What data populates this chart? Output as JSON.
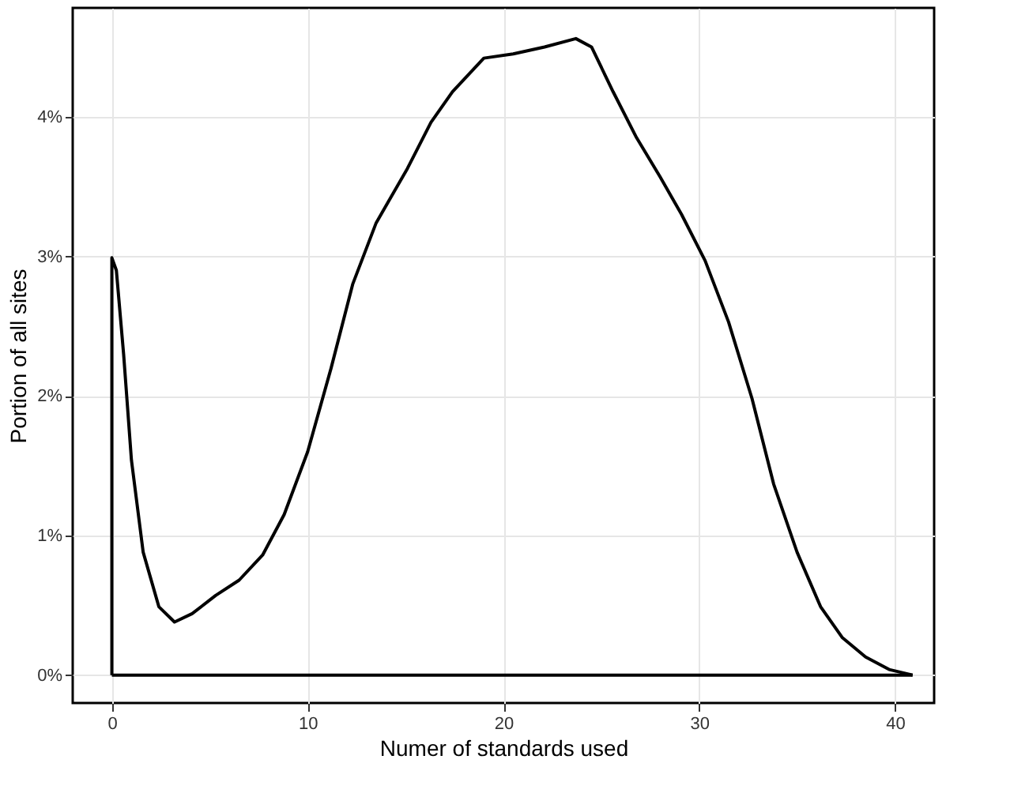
{
  "chart_data": {
    "type": "line",
    "xlabel": "Numer of standards used",
    "ylabel": "Portion of all sites",
    "series": [
      {
        "color": "#000000",
        "x": [
          0,
          0,
          0.23,
          0.6,
          1.0,
          1.6,
          2.4,
          3.2,
          4.1,
          5.3,
          6.5,
          7.7,
          8.8,
          10,
          11.2,
          12.3,
          13.5,
          15.1,
          16.3,
          17.4,
          19,
          20.5,
          22.1,
          23.7,
          24.5,
          25.6,
          26.8,
          28,
          29.1,
          30.3,
          31.5,
          32.7,
          33.8,
          35,
          36.2,
          37.3,
          38.5,
          39.7,
          40.9
        ],
        "values": [
          0,
          2.99,
          2.9,
          2.3,
          1.54,
          0.88,
          0.49,
          0.38,
          0.44,
          0.57,
          0.68,
          0.86,
          1.15,
          1.6,
          2.2,
          2.8,
          3.24,
          3.63,
          3.96,
          4.18,
          4.42,
          4.45,
          4.5,
          4.56,
          4.5,
          4.18,
          3.85,
          3.57,
          3.3,
          2.97,
          2.53,
          1.98,
          1.37,
          0.88,
          0.49,
          0.27,
          0.13,
          0.04,
          0
        ]
      },
      {
        "color": "#000000",
        "x": [
          0,
          40.9
        ],
        "values": [
          0,
          0
        ]
      }
    ],
    "xlim": [
      -2,
      42
    ],
    "xticks": [
      0,
      10,
      20,
      30,
      40
    ],
    "ylim": [
      -0.2,
      4.78
    ],
    "yticks": [
      {
        "value": 0,
        "label": "0%"
      },
      {
        "value": 1,
        "label": "1%"
      },
      {
        "value": 2,
        "label": "2%"
      },
      {
        "value": 3,
        "label": "3%"
      },
      {
        "value": 4,
        "label": "4%"
      }
    ],
    "grid": true,
    "marker": "none",
    "line_style": "solid"
  }
}
